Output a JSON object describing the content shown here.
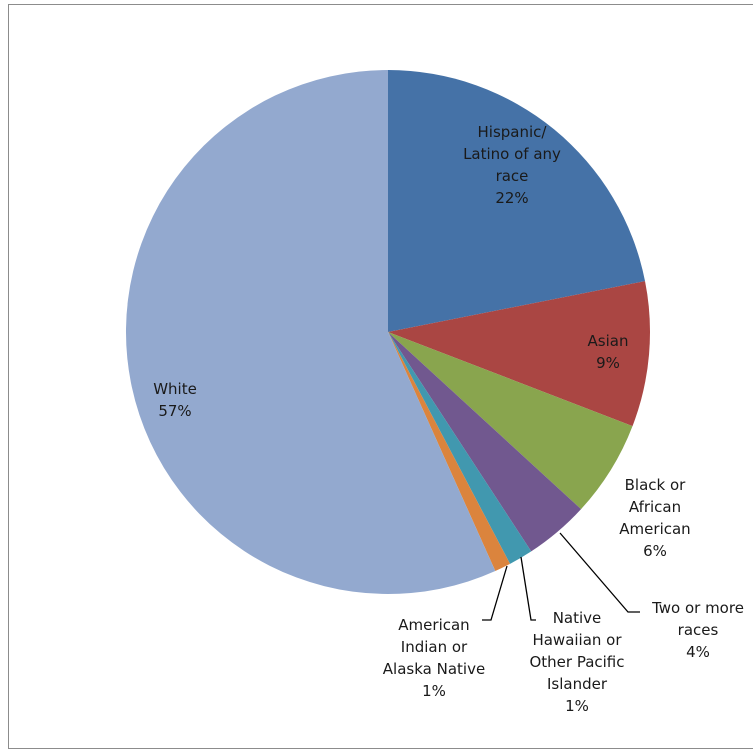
{
  "chart_data": {
    "type": "pie",
    "title": "",
    "slices": [
      {
        "label": [
          "Hispanic/",
          "Latino of any",
          "race"
        ],
        "percent_label": "22%",
        "value": 22,
        "color": "#4572a7"
      },
      {
        "label": [
          "Asian"
        ],
        "percent_label": "9%",
        "value": 9,
        "color": "#aa4643"
      },
      {
        "label": [
          "Black or",
          "African",
          "American"
        ],
        "percent_label": "6%",
        "value": 6,
        "color": "#89a54e"
      },
      {
        "label": [
          "Two or more",
          "races"
        ],
        "percent_label": "4%",
        "value": 4,
        "color": "#71588f"
      },
      {
        "label": [
          "Native",
          "Hawaiian or",
          "Other Pacific",
          "Islander"
        ],
        "percent_label": "1%",
        "value": 1.5,
        "color": "#4198af"
      },
      {
        "label": [
          "American",
          "Indian or",
          "Alaska Native"
        ],
        "percent_label": "1%",
        "value": 1,
        "color": "#db843d"
      },
      {
        "label": [
          "White"
        ],
        "percent_label": "57%",
        "value": 57,
        "color": "#93a9cf"
      }
    ]
  }
}
